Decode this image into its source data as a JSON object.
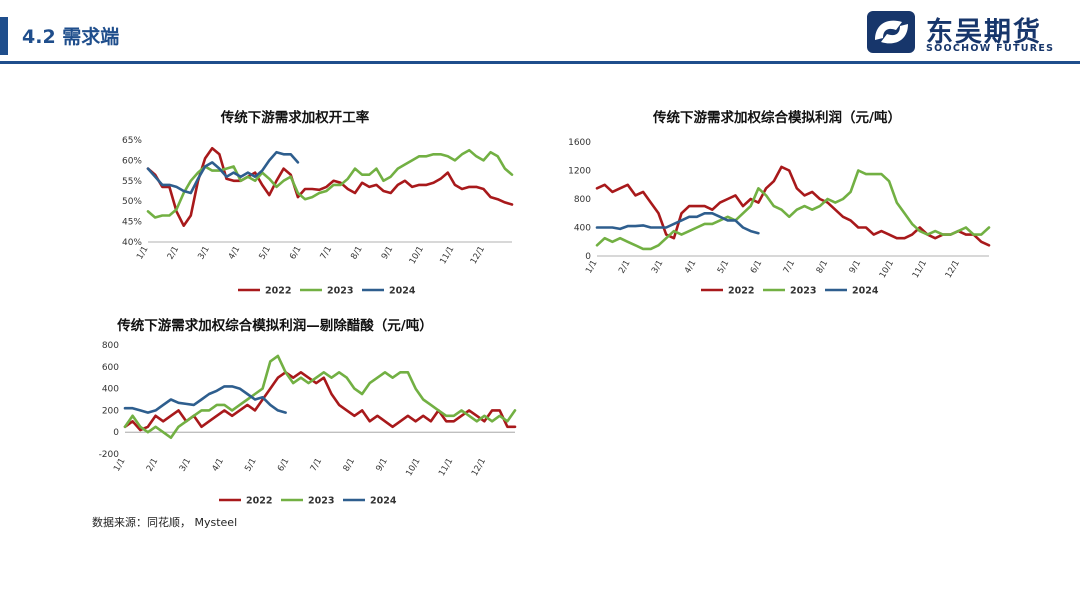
{
  "header": {
    "title": "4.2 需求端"
  },
  "logo": {
    "name_cn": "东吴期货",
    "name_en": "SOOCHOW FUTURES"
  },
  "footer": {
    "source": "数据来源：同花顺， Mysteel"
  },
  "colors": {
    "brand": "#1f4e8c",
    "s2022": "#a8191b",
    "s2023": "#72b043",
    "s2024": "#2e5e8e"
  },
  "chart_data": [
    {
      "type": "line",
      "title": "传统下游需求加权开工率",
      "y_unit": "%",
      "ylim": [
        40,
        65
      ],
      "yticks": [
        40,
        45,
        50,
        55,
        60,
        65
      ],
      "xticks": [
        "1/1",
        "2/1",
        "3/1",
        "4/1",
        "5/1",
        "6/1",
        "7/1",
        "8/1",
        "9/1",
        "10/1",
        "11/1",
        "12/1"
      ],
      "x_unit": "week",
      "xlim": [
        1,
        52
      ],
      "legend_position": "bottom",
      "series": [
        {
          "name": "2022",
          "x": [
            1,
            2,
            3,
            4,
            5,
            6,
            7,
            8,
            9,
            10,
            11,
            12,
            13,
            14,
            15,
            16,
            17,
            18,
            19,
            20,
            21,
            22,
            23,
            24,
            25,
            26,
            27,
            28,
            29,
            30,
            31,
            32,
            33,
            34,
            35,
            36,
            37,
            38,
            39,
            40,
            41,
            42,
            43,
            44,
            45,
            46,
            47,
            48,
            49,
            50,
            51,
            52
          ],
          "values": [
            58,
            56.5,
            53.5,
            53.5,
            47.5,
            44,
            46.5,
            55,
            60.5,
            63,
            61.5,
            55.5,
            55,
            55,
            56,
            57,
            54,
            51.5,
            55,
            58,
            56.5,
            51,
            53,
            53,
            52.8,
            53.5,
            55,
            54.5,
            53,
            52,
            54.5,
            53.5,
            54,
            52.5,
            52,
            54,
            55,
            53.5,
            54,
            54,
            54.5,
            55.5,
            57,
            54,
            53,
            53.5,
            53.5,
            53,
            51,
            50.5,
            49.7,
            49.2
          ]
        },
        {
          "name": "2023",
          "x": [
            1,
            2,
            3,
            4,
            5,
            6,
            7,
            8,
            9,
            10,
            11,
            12,
            13,
            14,
            15,
            16,
            17,
            18,
            19,
            20,
            21,
            22,
            23,
            24,
            25,
            26,
            27,
            28,
            29,
            30,
            31,
            32,
            33,
            34,
            35,
            36,
            37,
            38,
            39,
            40,
            41,
            42,
            43,
            44,
            45,
            46,
            47,
            48,
            49,
            50,
            51,
            52
          ],
          "values": [
            47.5,
            46,
            46.5,
            46.5,
            48,
            52,
            55,
            57,
            58.5,
            57.5,
            57.5,
            58,
            58.5,
            55,
            56,
            55,
            57,
            55.5,
            53.5,
            55,
            56,
            52,
            50.5,
            51,
            52,
            52.5,
            54,
            54,
            55.5,
            58,
            56.5,
            56.5,
            58,
            55,
            56,
            58,
            59,
            60,
            61,
            61,
            61.5,
            61.5,
            61,
            60,
            61.5,
            62.5,
            61,
            60,
            62,
            61,
            58,
            56.5
          ]
        },
        {
          "name": "2024",
          "x": [
            1,
            2,
            3,
            4,
            5,
            6,
            7,
            8,
            9,
            10,
            11,
            12,
            13,
            14,
            15,
            16,
            17,
            18,
            19,
            20,
            21,
            22
          ],
          "values": [
            58,
            56,
            54,
            54,
            53.5,
            52.5,
            52,
            55.5,
            58.5,
            59.5,
            58,
            56,
            57,
            56,
            57,
            56,
            57.5,
            60,
            62,
            61.5,
            61.5,
            59.5
          ]
        }
      ]
    },
    {
      "type": "line",
      "title": "传统下游需求加权综合模拟利润（元/吨）",
      "ylim": [
        0,
        1600
      ],
      "yticks": [
        0,
        400,
        800,
        1200,
        1600
      ],
      "xticks": [
        "1/1",
        "2/1",
        "3/1",
        "4/1",
        "5/1",
        "6/1",
        "7/1",
        "8/1",
        "9/1",
        "10/1",
        "11/1",
        "12/1"
      ],
      "x_unit": "week",
      "xlim": [
        1,
        52
      ],
      "legend_position": "bottom",
      "series": [
        {
          "name": "2022",
          "x": [
            1,
            2,
            3,
            4,
            5,
            6,
            7,
            8,
            9,
            10,
            11,
            12,
            13,
            14,
            15,
            16,
            17,
            18,
            19,
            20,
            21,
            22,
            23,
            24,
            25,
            26,
            27,
            28,
            29,
            30,
            31,
            32,
            33,
            34,
            35,
            36,
            37,
            38,
            39,
            40,
            41,
            42,
            43,
            44,
            45,
            46,
            47,
            48,
            49,
            50,
            51,
            52
          ],
          "values": [
            950,
            1000,
            900,
            950,
            1000,
            850,
            900,
            750,
            600,
            300,
            250,
            600,
            700,
            700,
            700,
            650,
            750,
            800,
            850,
            700,
            800,
            750,
            950,
            1050,
            1250,
            1200,
            950,
            850,
            900,
            800,
            750,
            650,
            550,
            500,
            400,
            400,
            300,
            350,
            300,
            250,
            250,
            300,
            400,
            300,
            250,
            300,
            300,
            350,
            300,
            300,
            200,
            150
          ]
        },
        {
          "name": "2023",
          "x": [
            1,
            2,
            3,
            4,
            5,
            6,
            7,
            8,
            9,
            10,
            11,
            12,
            13,
            14,
            15,
            16,
            17,
            18,
            19,
            20,
            21,
            22,
            23,
            24,
            25,
            26,
            27,
            28,
            29,
            30,
            31,
            32,
            33,
            34,
            35,
            36,
            37,
            38,
            39,
            40,
            41,
            42,
            43,
            44,
            45,
            46,
            47,
            48,
            49,
            50,
            51,
            52
          ],
          "values": [
            150,
            250,
            200,
            250,
            200,
            150,
            100,
            100,
            150,
            250,
            350,
            300,
            350,
            400,
            450,
            450,
            500,
            550,
            500,
            600,
            700,
            950,
            850,
            700,
            650,
            550,
            650,
            700,
            650,
            700,
            800,
            750,
            800,
            900,
            1200,
            1150,
            1150,
            1150,
            1050,
            750,
            600,
            450,
            350,
            300,
            350,
            300,
            300,
            350,
            400,
            300,
            300,
            400
          ]
        },
        {
          "name": "2024",
          "x": [
            1,
            2,
            3,
            4,
            5,
            6,
            7,
            8,
            9,
            10,
            11,
            12,
            13,
            14,
            15,
            16,
            17,
            18,
            19,
            20,
            21,
            22
          ],
          "values": [
            400,
            400,
            400,
            380,
            420,
            420,
            430,
            400,
            400,
            400,
            450,
            500,
            550,
            550,
            600,
            600,
            550,
            500,
            500,
            400,
            350,
            320
          ]
        }
      ]
    },
    {
      "type": "line",
      "title": "传统下游需求加权综合模拟利润—剔除醋酸（元/吨）",
      "ylim": [
        -200,
        800
      ],
      "yticks": [
        -200,
        0,
        200,
        400,
        600,
        800
      ],
      "xticks": [
        "1/1",
        "2/1",
        "3/1",
        "4/1",
        "5/1",
        "6/1",
        "7/1",
        "8/1",
        "9/1",
        "10/1",
        "11/1",
        "12/1"
      ],
      "x_unit": "week",
      "xlim": [
        1,
        52
      ],
      "legend_position": "bottom",
      "series": [
        {
          "name": "2022",
          "x": [
            1,
            2,
            3,
            4,
            5,
            6,
            7,
            8,
            9,
            10,
            11,
            12,
            13,
            14,
            15,
            16,
            17,
            18,
            19,
            20,
            21,
            22,
            23,
            24,
            25,
            26,
            27,
            28,
            29,
            30,
            31,
            32,
            33,
            34,
            35,
            36,
            37,
            38,
            39,
            40,
            41,
            42,
            43,
            44,
            45,
            46,
            47,
            48,
            49,
            50,
            51,
            52
          ],
          "values": [
            50,
            100,
            20,
            50,
            150,
            100,
            150,
            200,
            100,
            150,
            50,
            100,
            150,
            200,
            150,
            200,
            250,
            200,
            300,
            400,
            500,
            550,
            500,
            550,
            500,
            450,
            500,
            350,
            250,
            200,
            150,
            200,
            100,
            150,
            100,
            50,
            100,
            150,
            100,
            150,
            100,
            200,
            100,
            100,
            150,
            200,
            150,
            100,
            200,
            200,
            50,
            50
          ]
        },
        {
          "name": "2023",
          "x": [
            1,
            2,
            3,
            4,
            5,
            6,
            7,
            8,
            9,
            10,
            11,
            12,
            13,
            14,
            15,
            16,
            17,
            18,
            19,
            20,
            21,
            22,
            23,
            24,
            25,
            26,
            27,
            28,
            29,
            30,
            31,
            32,
            33,
            34,
            35,
            36,
            37,
            38,
            39,
            40,
            41,
            42,
            43,
            44,
            45,
            46,
            47,
            48,
            49,
            50,
            51,
            52
          ],
          "values": [
            50,
            150,
            50,
            0,
            50,
            0,
            -50,
            50,
            100,
            150,
            200,
            200,
            250,
            250,
            200,
            250,
            300,
            350,
            400,
            650,
            700,
            550,
            450,
            500,
            450,
            500,
            550,
            500,
            550,
            500,
            400,
            350,
            450,
            500,
            550,
            500,
            550,
            550,
            400,
            300,
            250,
            200,
            150,
            150,
            200,
            150,
            100,
            150,
            100,
            150,
            100,
            200
          ]
        },
        {
          "name": "2024",
          "x": [
            1,
            2,
            3,
            4,
            5,
            6,
            7,
            8,
            9,
            10,
            11,
            12,
            13,
            14,
            15,
            16,
            17,
            18,
            19,
            20,
            21,
            22
          ],
          "values": [
            220,
            220,
            200,
            180,
            200,
            250,
            300,
            270,
            260,
            250,
            300,
            350,
            380,
            420,
            420,
            400,
            350,
            300,
            320,
            250,
            200,
            180
          ]
        }
      ]
    }
  ]
}
